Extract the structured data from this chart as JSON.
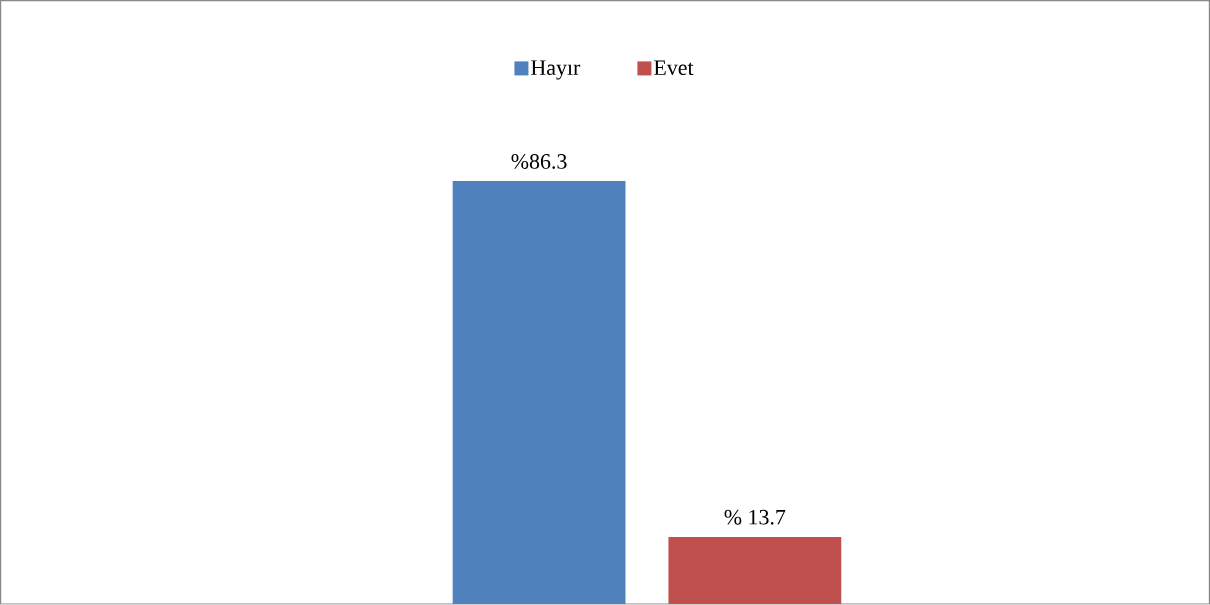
{
  "chart_data": {
    "type": "bar",
    "categories": [
      null
    ],
    "legend": "top",
    "series": [
      {
        "name": "Hayır",
        "color": "#4f81bd",
        "values": [
          86.3
        ],
        "value_labels": [
          "%86.3"
        ]
      },
      {
        "name": "Evet",
        "color": "#c0504d",
        "values": [
          13.7
        ],
        "value_labels": [
          "% 13.7"
        ]
      }
    ]
  }
}
